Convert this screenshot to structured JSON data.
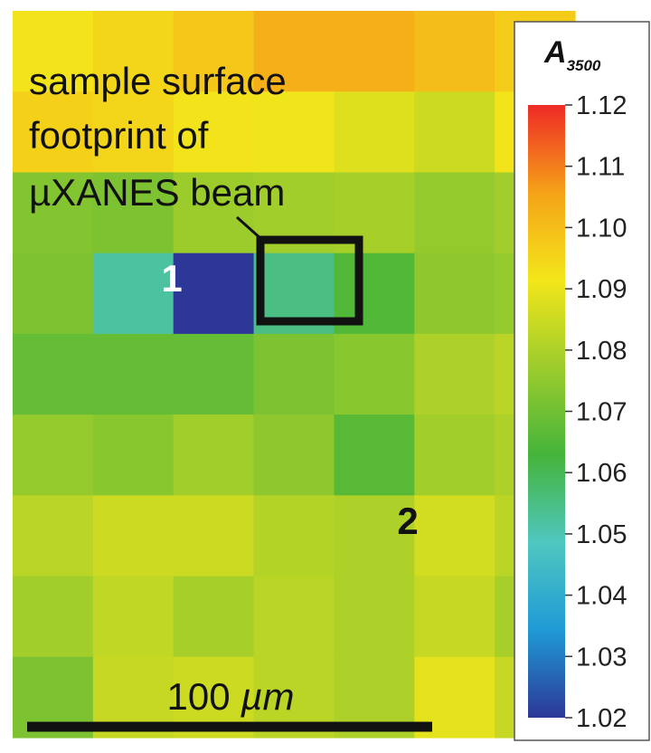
{
  "chart_data": {
    "type": "heatmap",
    "title": "",
    "colorbar": {
      "title_main": "A",
      "title_subscript": "3500",
      "min": 1.02,
      "max": 1.12,
      "ticks": [
        "1.12",
        "1.11",
        "1.10",
        "1.09",
        "1.08",
        "1.07",
        "1.06",
        "1.05",
        "1.04",
        "1.03",
        "1.02"
      ],
      "colormap": [
        "#2c3797",
        "#1f9ad6",
        "#4fc7c0",
        "#45b43a",
        "#9ccc2c",
        "#f3e61a",
        "#f5a218",
        "#ee2a26"
      ]
    },
    "grid": {
      "rows": 9,
      "cols": 7
    },
    "values": [
      [
        1.092,
        1.095,
        1.098,
        1.103,
        1.103,
        1.1,
        1.097
      ],
      [
        1.096,
        1.095,
        1.092,
        1.091,
        1.088,
        1.085,
        1.092
      ],
      [
        1.073,
        1.072,
        1.077,
        1.078,
        1.079,
        1.076,
        1.078
      ],
      [
        1.072,
        1.052,
        1.02,
        1.055,
        1.065,
        1.075,
        1.076
      ],
      [
        1.068,
        1.068,
        1.068,
        1.072,
        1.074,
        1.08,
        1.082
      ],
      [
        1.076,
        1.074,
        1.078,
        1.075,
        1.066,
        1.078,
        1.08
      ],
      [
        1.082,
        1.085,
        1.085,
        1.081,
        1.08,
        1.086,
        1.082
      ],
      [
        1.078,
        1.083,
        1.079,
        1.082,
        1.08,
        1.084,
        1.079
      ],
      [
        1.072,
        1.084,
        1.085,
        1.082,
        1.08,
        1.089,
        1.084
      ]
    ],
    "annotations": [
      {
        "text": "sample surface",
        "role": "label"
      },
      {
        "text": "footprint of",
        "role": "label"
      },
      {
        "text": "µXANES beam",
        "role": "label"
      },
      {
        "text": "1",
        "role": "point-label",
        "row": 3,
        "col": 2
      },
      {
        "text": "2",
        "role": "point-label",
        "row": 6,
        "col": 4
      }
    ],
    "beam_box": {
      "row": 3,
      "col": 3,
      "row_span": 1,
      "col_span": 1
    },
    "scale_bar": {
      "label_number": "100",
      "label_unit": "µm"
    }
  }
}
